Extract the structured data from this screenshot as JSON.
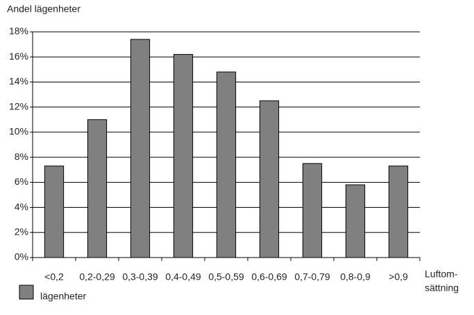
{
  "chart_data": {
    "type": "bar",
    "ylabel": "Andel lägenheter",
    "xlabel": [
      "Luftom-",
      "sättning"
    ],
    "categories": [
      "<0,2",
      "0,2-0,29",
      "0,3-0,39",
      "0,4-0,49",
      "0,5-0,59",
      "0,6-0,69",
      "0,7-0,79",
      "0,8-0,9",
      ">0,9"
    ],
    "series": [
      {
        "name": "lägenheter",
        "color": "#808080",
        "values": [
          7.3,
          11.0,
          17.4,
          16.2,
          14.8,
          12.5,
          7.5,
          5.8,
          7.3
        ]
      }
    ],
    "ylim": [
      0,
      18
    ],
    "yticks": [
      {
        "value": 0,
        "label": "0%"
      },
      {
        "value": 2,
        "label": "2%"
      },
      {
        "value": 4,
        "label": "4%"
      },
      {
        "value": 6,
        "label": "6%"
      },
      {
        "value": 8,
        "label": "8%"
      },
      {
        "value": 10,
        "label": "10%"
      },
      {
        "value": 12,
        "label": "12%"
      },
      {
        "value": 14,
        "label": "14%"
      },
      {
        "value": 16,
        "label": "16%"
      },
      {
        "value": 18,
        "label": "18%"
      }
    ],
    "grid": true
  }
}
